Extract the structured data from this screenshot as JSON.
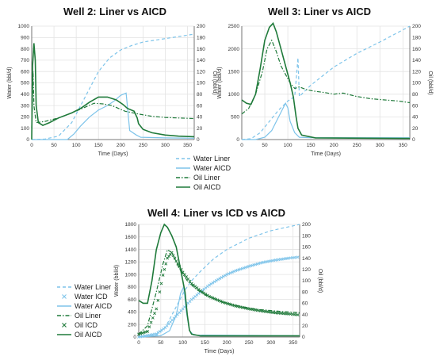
{
  "legend_labels": [
    "Water Liner",
    "Water AICD",
    "Oil Liner",
    "Oil AICD"
  ],
  "legend_labels_w4": [
    "Water Liner",
    "Water ICD",
    "Water AICD",
    "Oil Liner",
    "Oil ICD",
    "Oil AICD"
  ],
  "colors": {
    "water": "#7ec4ea",
    "oil": "#1f7a3a",
    "grid": "#e3e3e3",
    "axis": "#555555"
  },
  "chart_data": [
    {
      "type": "line",
      "title": "Well 2: Liner vs AICD",
      "xlabel": "Time (Days)",
      "ylabel": "Water (bbl/d)",
      "y2label": "Oil (bbl/d)",
      "xlim": [
        0,
        365
      ],
      "ylim": [
        0,
        1000
      ],
      "y2lim": [
        0,
        200
      ],
      "xticks": [
        0,
        50,
        100,
        150,
        200,
        250,
        300,
        350
      ],
      "yticks": [
        0,
        100,
        200,
        300,
        400,
        500,
        600,
        700,
        800,
        900,
        1000
      ],
      "y2ticks": [
        0,
        20,
        40,
        60,
        80,
        100,
        120,
        140,
        160,
        180,
        200
      ],
      "grid": true,
      "series": [
        {
          "name": "Water Liner",
          "axis": "left",
          "style": "dashed",
          "color": "water",
          "points": [
            [
              0,
              0
            ],
            [
              30,
              5
            ],
            [
              60,
              30
            ],
            [
              90,
              150
            ],
            [
              110,
              300
            ],
            [
              130,
              450
            ],
            [
              150,
              600
            ],
            [
              175,
              720
            ],
            [
              200,
              790
            ],
            [
              225,
              830
            ],
            [
              250,
              860
            ],
            [
              300,
              890
            ],
            [
              365,
              930
            ]
          ]
        },
        {
          "name": "Water AICD",
          "axis": "left",
          "style": "solid",
          "color": "water",
          "points": [
            [
              0,
              0
            ],
            [
              80,
              0
            ],
            [
              95,
              50
            ],
            [
              110,
              120
            ],
            [
              130,
              200
            ],
            [
              150,
              260
            ],
            [
              170,
              300
            ],
            [
              185,
              340
            ],
            [
              200,
              390
            ],
            [
              212,
              410
            ],
            [
              220,
              80
            ],
            [
              235,
              40
            ],
            [
              245,
              20
            ],
            [
              300,
              15
            ],
            [
              365,
              12
            ]
          ]
        },
        {
          "name": "Oil Liner",
          "axis": "right",
          "style": "dashdot",
          "color": "oil",
          "points": [
            [
              0,
              20
            ],
            [
              3,
              120
            ],
            [
              5,
              60
            ],
            [
              10,
              30
            ],
            [
              30,
              32
            ],
            [
              60,
              38
            ],
            [
              90,
              47
            ],
            [
              120,
              57
            ],
            [
              140,
              64
            ],
            [
              160,
              63
            ],
            [
              180,
              60
            ],
            [
              210,
              50
            ],
            [
              240,
              45
            ],
            [
              270,
              41
            ],
            [
              300,
              39
            ],
            [
              330,
              38
            ],
            [
              365,
              37
            ]
          ]
        },
        {
          "name": "Oil AICD",
          "axis": "right",
          "style": "solid",
          "color": "oil",
          "points": [
            [
              0,
              0
            ],
            [
              2,
              130
            ],
            [
              5,
              170
            ],
            [
              8,
              140
            ],
            [
              10,
              60
            ],
            [
              15,
              30
            ],
            [
              25,
              25
            ],
            [
              40,
              30
            ],
            [
              60,
              38
            ],
            [
              90,
              47
            ],
            [
              110,
              55
            ],
            [
              130,
              66
            ],
            [
              150,
              75
            ],
            [
              170,
              75
            ],
            [
              190,
              70
            ],
            [
              205,
              62
            ],
            [
              215,
              55
            ],
            [
              230,
              50
            ],
            [
              237,
              38
            ],
            [
              240,
              28
            ],
            [
              250,
              18
            ],
            [
              270,
              12
            ],
            [
              300,
              8
            ],
            [
              330,
              6
            ],
            [
              365,
              5
            ]
          ]
        }
      ]
    },
    {
      "type": "line",
      "title": "Well 3: Liner vs AICD",
      "xlabel": "Time (Days)",
      "ylabel": "Water (bbl/d)",
      "y2label": "Oil (bbl/d)",
      "xlim": [
        0,
        365
      ],
      "ylim": [
        0,
        2500
      ],
      "y2lim": [
        0,
        200
      ],
      "xticks": [
        0,
        50,
        100,
        150,
        200,
        250,
        300,
        350
      ],
      "yticks": [
        0,
        500,
        1000,
        1500,
        2000,
        2500
      ],
      "y2ticks": [
        0,
        20,
        40,
        60,
        80,
        100,
        120,
        140,
        160,
        180,
        200
      ],
      "grid": true,
      "series": [
        {
          "name": "Water Liner",
          "axis": "left",
          "style": "dashed",
          "color": "water",
          "points": [
            [
              0,
              0
            ],
            [
              20,
              20
            ],
            [
              40,
              150
            ],
            [
              60,
              400
            ],
            [
              80,
              650
            ],
            [
              100,
              850
            ],
            [
              115,
              950
            ],
            [
              122,
              1800
            ],
            [
              125,
              950
            ],
            [
              150,
              1200
            ],
            [
              200,
              1600
            ],
            [
              250,
              1900
            ],
            [
              300,
              2150
            ],
            [
              365,
              2500
            ]
          ]
        },
        {
          "name": "Water AICD",
          "axis": "left",
          "style": "solid",
          "color": "water",
          "points": [
            [
              0,
              0
            ],
            [
              30,
              0
            ],
            [
              50,
              50
            ],
            [
              65,
              200
            ],
            [
              80,
              500
            ],
            [
              95,
              800
            ],
            [
              100,
              700
            ],
            [
              105,
              400
            ],
            [
              115,
              150
            ],
            [
              125,
              50
            ],
            [
              150,
              40
            ],
            [
              365,
              40
            ]
          ]
        },
        {
          "name": "Oil Liner",
          "axis": "right",
          "style": "dashdot",
          "color": "oil",
          "points": [
            [
              0,
              45
            ],
            [
              15,
              55
            ],
            [
              30,
              80
            ],
            [
              45,
              120
            ],
            [
              55,
              160
            ],
            [
              65,
              175
            ],
            [
              75,
              155
            ],
            [
              85,
              130
            ],
            [
              95,
              115
            ],
            [
              105,
              100
            ],
            [
              115,
              90
            ],
            [
              125,
              93
            ],
            [
              140,
              88
            ],
            [
              160,
              85
            ],
            [
              180,
              83
            ],
            [
              200,
              80
            ],
            [
              220,
              82
            ],
            [
              250,
              76
            ],
            [
              280,
              72
            ],
            [
              310,
              70
            ],
            [
              340,
              68
            ],
            [
              365,
              65
            ]
          ]
        },
        {
          "name": "Oil AICD",
          "axis": "right",
          "style": "solid",
          "color": "oil",
          "points": [
            [
              0,
              70
            ],
            [
              10,
              64
            ],
            [
              20,
              62
            ],
            [
              30,
              80
            ],
            [
              40,
              125
            ],
            [
              50,
              175
            ],
            [
              60,
              198
            ],
            [
              68,
              205
            ],
            [
              75,
              190
            ],
            [
              85,
              160
            ],
            [
              95,
              130
            ],
            [
              105,
              100
            ],
            [
              112,
              75
            ],
            [
              118,
              40
            ],
            [
              122,
              20
            ],
            [
              130,
              8
            ],
            [
              160,
              3
            ],
            [
              365,
              2
            ]
          ]
        }
      ]
    },
    {
      "type": "line",
      "title": "Well 4: Liner vs ICD vs AICD",
      "xlabel": "Time (Days)",
      "ylabel": "Water (bbl/d)",
      "y2label": "Oil (bbl/d)",
      "xlim": [
        0,
        365
      ],
      "ylim": [
        0,
        1800
      ],
      "y2lim": [
        0,
        200
      ],
      "xticks": [
        0,
        50,
        100,
        150,
        200,
        250,
        300,
        350
      ],
      "yticks": [
        0,
        200,
        400,
        600,
        800,
        1000,
        1200,
        1400,
        1600,
        1800
      ],
      "y2ticks": [
        0,
        20,
        40,
        60,
        80,
        100,
        120,
        140,
        160,
        180,
        200
      ],
      "grid": true,
      "series": [
        {
          "name": "Water Liner",
          "axis": "left",
          "style": "dashed",
          "color": "water",
          "points": [
            [
              0,
              0
            ],
            [
              40,
              30
            ],
            [
              60,
              150
            ],
            [
              75,
              350
            ],
            [
              90,
              550
            ],
            [
              105,
              750
            ],
            [
              120,
              900
            ],
            [
              140,
              1050
            ],
            [
              170,
              1250
            ],
            [
              200,
              1400
            ],
            [
              250,
              1580
            ],
            [
              300,
              1700
            ],
            [
              365,
              1800
            ]
          ]
        },
        {
          "name": "Water ICD",
          "axis": "left",
          "style": "marker-x",
          "color": "water",
          "points": [
            [
              0,
              0
            ],
            [
              40,
              50
            ],
            [
              60,
              150
            ],
            [
              80,
              300
            ],
            [
              100,
              450
            ],
            [
              120,
              600
            ],
            [
              140,
              720
            ],
            [
              160,
              830
            ],
            [
              180,
              920
            ],
            [
              200,
              1000
            ],
            [
              220,
              1060
            ],
            [
              250,
              1130
            ],
            [
              280,
              1190
            ],
            [
              310,
              1230
            ],
            [
              340,
              1260
            ],
            [
              365,
              1280
            ]
          ]
        },
        {
          "name": "Water AICD",
          "axis": "left",
          "style": "solid",
          "color": "water",
          "points": [
            [
              0,
              0
            ],
            [
              50,
              20
            ],
            [
              70,
              100
            ],
            [
              85,
              350
            ],
            [
              95,
              700
            ],
            [
              102,
              800
            ],
            [
              108,
              400
            ],
            [
              115,
              100
            ],
            [
              125,
              30
            ],
            [
              365,
              20
            ]
          ]
        },
        {
          "name": "Oil Liner",
          "axis": "right",
          "style": "dashdot",
          "color": "oil",
          "points": [
            [
              0,
              5
            ],
            [
              20,
              20
            ],
            [
              40,
              80
            ],
            [
              55,
              130
            ],
            [
              65,
              155
            ],
            [
              75,
              150
            ],
            [
              90,
              125
            ],
            [
              110,
              100
            ],
            [
              130,
              85
            ],
            [
              150,
              75
            ],
            [
              180,
              65
            ],
            [
              210,
              58
            ],
            [
              240,
              53
            ],
            [
              270,
              49
            ],
            [
              300,
              47
            ],
            [
              330,
              45
            ],
            [
              365,
              43
            ]
          ]
        },
        {
          "name": "Oil ICD",
          "axis": "right",
          "style": "marker-x",
          "color": "oil",
          "points": [
            [
              0,
              5
            ],
            [
              20,
              10
            ],
            [
              40,
              50
            ],
            [
              55,
              110
            ],
            [
              65,
              140
            ],
            [
              75,
              150
            ],
            [
              85,
              135
            ],
            [
              100,
              115
            ],
            [
              120,
              95
            ],
            [
              140,
              82
            ],
            [
              160,
              72
            ],
            [
              190,
              62
            ],
            [
              220,
              55
            ],
            [
              250,
              50
            ],
            [
              280,
              46
            ],
            [
              310,
              43
            ],
            [
              340,
              41
            ],
            [
              365,
              39
            ]
          ]
        },
        {
          "name": "Oil AICD",
          "axis": "right",
          "style": "solid",
          "color": "oil",
          "points": [
            [
              0,
              65
            ],
            [
              10,
              60
            ],
            [
              20,
              60
            ],
            [
              30,
              100
            ],
            [
              40,
              155
            ],
            [
              50,
              185
            ],
            [
              58,
              200
            ],
            [
              65,
              195
            ],
            [
              75,
              180
            ],
            [
              85,
              160
            ],
            [
              95,
              120
            ],
            [
              105,
              80
            ],
            [
              110,
              40
            ],
            [
              115,
              12
            ],
            [
              120,
              5
            ],
            [
              140,
              2
            ],
            [
              365,
              2
            ]
          ]
        }
      ]
    }
  ]
}
